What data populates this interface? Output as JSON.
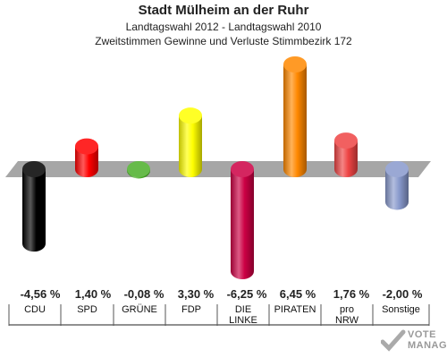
{
  "chart_data": {
    "type": "bar",
    "title": "Stadt Mülheim an der Ruhr",
    "subtitle": "Landtagswahl 2012 - Landtagswahl 2010",
    "subtitle2": "Zweitstimmen Gewinne und Verluste Stimmbezirk 172",
    "categories": [
      "CDU",
      "SPD",
      "GRÜNE",
      "FDP",
      "DIE LINKE",
      "PIRATEN",
      "pro NRW",
      "Sonstige"
    ],
    "category_lines": [
      [
        "CDU"
      ],
      [
        "SPD"
      ],
      [
        "GRÜNE"
      ],
      [
        "FDP"
      ],
      [
        "DIE",
        "LINKE"
      ],
      [
        "PIRATEN"
      ],
      [
        "pro",
        "NRW"
      ],
      [
        "Sonstige"
      ]
    ],
    "values": [
      -4.56,
      1.4,
      -0.08,
      3.3,
      -6.25,
      6.45,
      1.76,
      -2.0
    ],
    "value_labels": [
      "-4,56 %",
      "1,40 %",
      "-0,08 %",
      "3,30 %",
      "-6,25 %",
      "6,45 %",
      "1,76 %",
      "-2,00 %"
    ],
    "colors": [
      "#000000",
      "#ff0000",
      "#4caf2a",
      "#ffff00",
      "#cc0044",
      "#ff8800",
      "#ee4444",
      "#8899cc"
    ],
    "ylim": [
      -6.25,
      6.45
    ],
    "grid": false
  },
  "watermark": {
    "line1": "VOTE",
    "line2": "MANAGER"
  }
}
